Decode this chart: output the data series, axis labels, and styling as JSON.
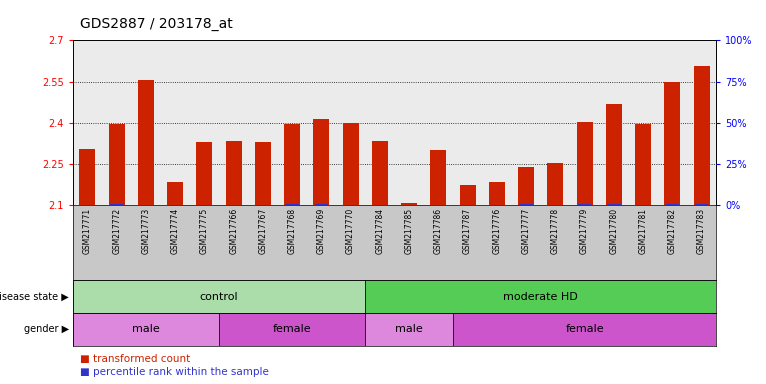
{
  "title": "GDS2887 / 203178_at",
  "samples": [
    "GSM217771",
    "GSM217772",
    "GSM217773",
    "GSM217774",
    "GSM217775",
    "GSM217766",
    "GSM217767",
    "GSM217768",
    "GSM217769",
    "GSM217770",
    "GSM217784",
    "GSM217785",
    "GSM217786",
    "GSM217787",
    "GSM217776",
    "GSM217777",
    "GSM217778",
    "GSM217779",
    "GSM217780",
    "GSM217781",
    "GSM217782",
    "GSM217783"
  ],
  "transformed_count": [
    2.305,
    2.395,
    2.555,
    2.185,
    2.33,
    2.335,
    2.33,
    2.395,
    2.415,
    2.4,
    2.335,
    2.108,
    2.3,
    2.175,
    2.185,
    2.238,
    2.255,
    2.405,
    2.47,
    2.395,
    2.548,
    2.605
  ],
  "percentile_rank": [
    2,
    10,
    2,
    2,
    5,
    5,
    2,
    8,
    8,
    5,
    3,
    1,
    3,
    2,
    2,
    8,
    2,
    8,
    10,
    3,
    8,
    8
  ],
  "ymin": 2.1,
  "ymax": 2.7,
  "yticks_left": [
    2.1,
    2.25,
    2.4,
    2.55,
    2.7
  ],
  "yticks_right": [
    0,
    25,
    50,
    75,
    100
  ],
  "bar_color": "#cc2200",
  "percentile_color": "#3333cc",
  "background_color": "#ebebeb",
  "disease_state_groups": [
    {
      "label": "control",
      "start": 0,
      "end": 10,
      "color": "#aaddaa"
    },
    {
      "label": "moderate HD",
      "start": 10,
      "end": 22,
      "color": "#55cc55"
    }
  ],
  "gender_groups": [
    {
      "label": "male",
      "start": 0,
      "end": 5,
      "color": "#dd88dd"
    },
    {
      "label": "female",
      "start": 5,
      "end": 10,
      "color": "#cc55cc"
    },
    {
      "label": "male",
      "start": 10,
      "end": 13,
      "color": "#dd88dd"
    },
    {
      "label": "female",
      "start": 13,
      "end": 22,
      "color": "#cc55cc"
    }
  ],
  "grid_color": "#000000",
  "title_fontsize": 10,
  "tick_fontsize": 7,
  "label_fontsize": 7.5,
  "strip_color": "#c8c8c8"
}
